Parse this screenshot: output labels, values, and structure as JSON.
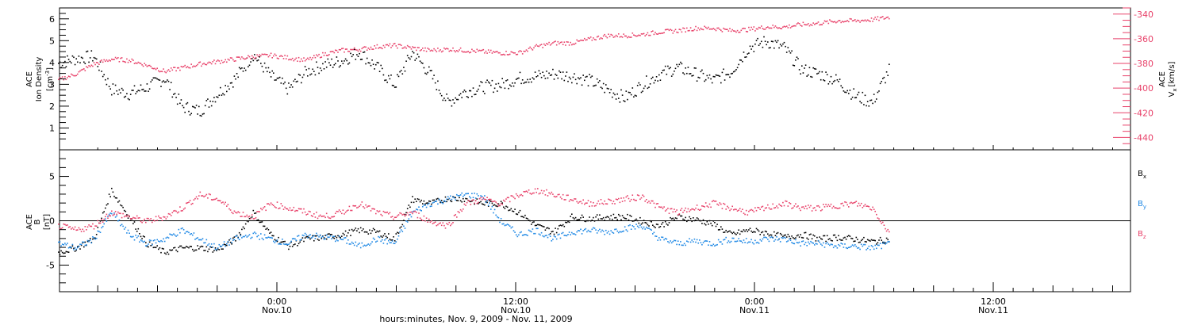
{
  "colors": {
    "black": "#000000",
    "pink": "#e8426a",
    "blue": "#1e88e5"
  },
  "chart_data": [
    {
      "type": "scatter",
      "panel": "top",
      "ylabel_left": [
        "ACE",
        "Ion Density",
        "[cm",
        "-3",
        "]"
      ],
      "ylabel_right": [
        "ACE",
        "V",
        "x",
        "[km/s]"
      ],
      "ylim_left": [
        0,
        6.5
      ],
      "ylim_right": [
        -450,
        -335
      ],
      "left_ticks": [
        "1",
        "2",
        "3",
        "4",
        "5",
        "6"
      ],
      "right_ticks": [
        "-340",
        "-360",
        "-380",
        "-400",
        "-420",
        "-440"
      ],
      "series": [
        {
          "name": "Ion Density",
          "axis": "left",
          "color": "#000000",
          "x": [
            0,
            1,
            2,
            3,
            4,
            5,
            6,
            7,
            8,
            9,
            10,
            11,
            12,
            13,
            14,
            15,
            16,
            17,
            18,
            19,
            20,
            21,
            22,
            23,
            24,
            25,
            26,
            27,
            28,
            29,
            30,
            31,
            32,
            33,
            34,
            35,
            36,
            37,
            38,
            39,
            40,
            41,
            42,
            43,
            44,
            45,
            46,
            47
          ],
          "y": [
            4.0,
            4.2,
            4.3,
            2.8,
            2.6,
            2.9,
            3.3,
            2.0,
            1.8,
            2.6,
            3.3,
            4.4,
            3.4,
            2.8,
            3.6,
            3.9,
            4.1,
            4.5,
            3.8,
            3.0,
            4.5,
            3.5,
            2.2,
            2.7,
            2.9,
            3.0,
            3.3,
            3.4,
            3.5,
            3.4,
            3.2,
            2.8,
            2.4,
            3.0,
            3.5,
            3.8,
            3.5,
            3.2,
            3.6,
            4.7,
            5.0,
            4.7,
            3.7,
            3.5,
            3.2,
            2.5,
            2.2,
            3.8
          ]
        },
        {
          "name": "Vx",
          "axis": "right",
          "color": "#e8426a",
          "x": [
            0,
            1,
            2,
            3,
            4,
            5,
            6,
            7,
            8,
            9,
            10,
            11,
            12,
            13,
            14,
            15,
            16,
            17,
            18,
            19,
            20,
            21,
            22,
            23,
            24,
            25,
            26,
            27,
            28,
            29,
            30,
            31,
            32,
            33,
            34,
            35,
            36,
            37,
            38,
            39,
            40,
            41,
            42,
            43,
            44,
            45,
            46,
            47
          ],
          "y": [
            -393,
            -388,
            -380,
            -376,
            -377,
            -381,
            -386,
            -383,
            -380,
            -378,
            -376,
            -374,
            -373,
            -375,
            -377,
            -372,
            -369,
            -368,
            -366,
            -365,
            -367,
            -369,
            -368,
            -369,
            -370,
            -371,
            -371,
            -366,
            -363,
            -363,
            -360,
            -357,
            -357,
            -356,
            -354,
            -353,
            -351,
            -351,
            -353,
            -352,
            -350,
            -350,
            -348,
            -347,
            -345,
            -345,
            -344,
            -342
          ]
        }
      ]
    },
    {
      "type": "scatter",
      "panel": "bottom",
      "ylabel_left": [
        "ACE",
        "B",
        "[nT]"
      ],
      "ylim": [
        -8,
        8
      ],
      "left_ticks": [
        "-5",
        "0",
        "5"
      ],
      "series": [
        {
          "name": "B",
          "label_sub": "x",
          "color": "#000000",
          "x": [
            0,
            1,
            2,
            3,
            4,
            5,
            6,
            7,
            8,
            9,
            10,
            11,
            12,
            13,
            14,
            15,
            16,
            17,
            18,
            19,
            20,
            21,
            22,
            23,
            24,
            25,
            26,
            27,
            28,
            29,
            30,
            31,
            32,
            33,
            34,
            35,
            36,
            37,
            38,
            39,
            40,
            41,
            42,
            43,
            44,
            45,
            46,
            47
          ],
          "y": [
            -3.5,
            -3.0,
            -2.0,
            3.5,
            0.5,
            -2.5,
            -3.5,
            -3.0,
            -3.0,
            -3.2,
            -2.0,
            1.0,
            -1.5,
            -2.8,
            -2.0,
            -1.8,
            -1.5,
            -1.0,
            -1.2,
            -2.0,
            2.5,
            2.0,
            2.6,
            2.5,
            2.0,
            2.0,
            1.0,
            -0.5,
            -1.2,
            0.5,
            0.3,
            0.5,
            0.5,
            0.0,
            -0.5,
            0.5,
            0.2,
            -0.3,
            -1.5,
            -1.0,
            -1.3,
            -1.8,
            -1.5,
            -2.0,
            -1.8,
            -2.0,
            -2.3,
            -2.0
          ]
        },
        {
          "name": "B",
          "label_sub": "y",
          "color": "#1e88e5",
          "x": [
            0,
            1,
            2,
            3,
            4,
            5,
            6,
            7,
            8,
            9,
            10,
            11,
            12,
            13,
            14,
            15,
            16,
            17,
            18,
            19,
            20,
            21,
            22,
            23,
            24,
            25,
            26,
            27,
            28,
            29,
            30,
            31,
            32,
            33,
            34,
            35,
            36,
            37,
            38,
            39,
            40,
            41,
            42,
            43,
            44,
            45,
            46,
            47
          ],
          "y": [
            -2.5,
            -3.0,
            -2.0,
            1.0,
            -1.5,
            -2.5,
            -2.0,
            -1.0,
            -2.0,
            -3.0,
            -2.0,
            -1.5,
            -2.0,
            -2.5,
            -1.5,
            -1.8,
            -2.0,
            -2.8,
            -2.0,
            -2.5,
            1.0,
            2.0,
            2.5,
            3.0,
            2.8,
            0.0,
            -1.5,
            -1.0,
            -2.0,
            -1.2,
            -1.0,
            -1.2,
            -0.8,
            -0.5,
            -2.0,
            -2.5,
            -2.2,
            -2.5,
            -2.0,
            -2.3,
            -2.0,
            -2.0,
            -2.5,
            -2.5,
            -2.8,
            -2.8,
            -3.0,
            -2.5
          ]
        },
        {
          "name": "B",
          "label_sub": "z",
          "color": "#e8426a",
          "x": [
            0,
            1,
            2,
            3,
            4,
            5,
            6,
            7,
            8,
            9,
            10,
            11,
            12,
            13,
            14,
            15,
            16,
            17,
            18,
            19,
            20,
            21,
            22,
            23,
            24,
            25,
            26,
            27,
            28,
            29,
            30,
            31,
            32,
            33,
            34,
            35,
            36,
            37,
            38,
            39,
            40,
            41,
            42,
            43,
            44,
            45,
            46,
            47
          ],
          "y": [
            -0.5,
            -1.0,
            -0.5,
            1.0,
            0.5,
            0.0,
            0.5,
            1.5,
            3.0,
            2.5,
            1.0,
            0.5,
            2.0,
            1.5,
            1.0,
            0.5,
            1.0,
            2.0,
            1.0,
            0.5,
            1.0,
            0.0,
            -0.5,
            2.0,
            2.5,
            2.0,
            3.0,
            3.5,
            3.0,
            2.5,
            2.0,
            2.2,
            2.5,
            2.8,
            1.5,
            1.0,
            1.5,
            2.0,
            1.5,
            1.0,
            1.5,
            2.0,
            1.5,
            1.5,
            1.8,
            2.0,
            1.5,
            -1.5
          ]
        }
      ]
    }
  ],
  "x_axis": {
    "ticks": [
      {
        "time": "0:00",
        "date": "Nov.10"
      },
      {
        "time": "12:00",
        "date": "Nov.10"
      },
      {
        "time": "0:00",
        "date": "Nov.11"
      },
      {
        "time": "12:00",
        "date": "Nov.11"
      }
    ],
    "title": "hours:minutes, Nov. 9, 2009 - Nov. 11, 2009"
  }
}
